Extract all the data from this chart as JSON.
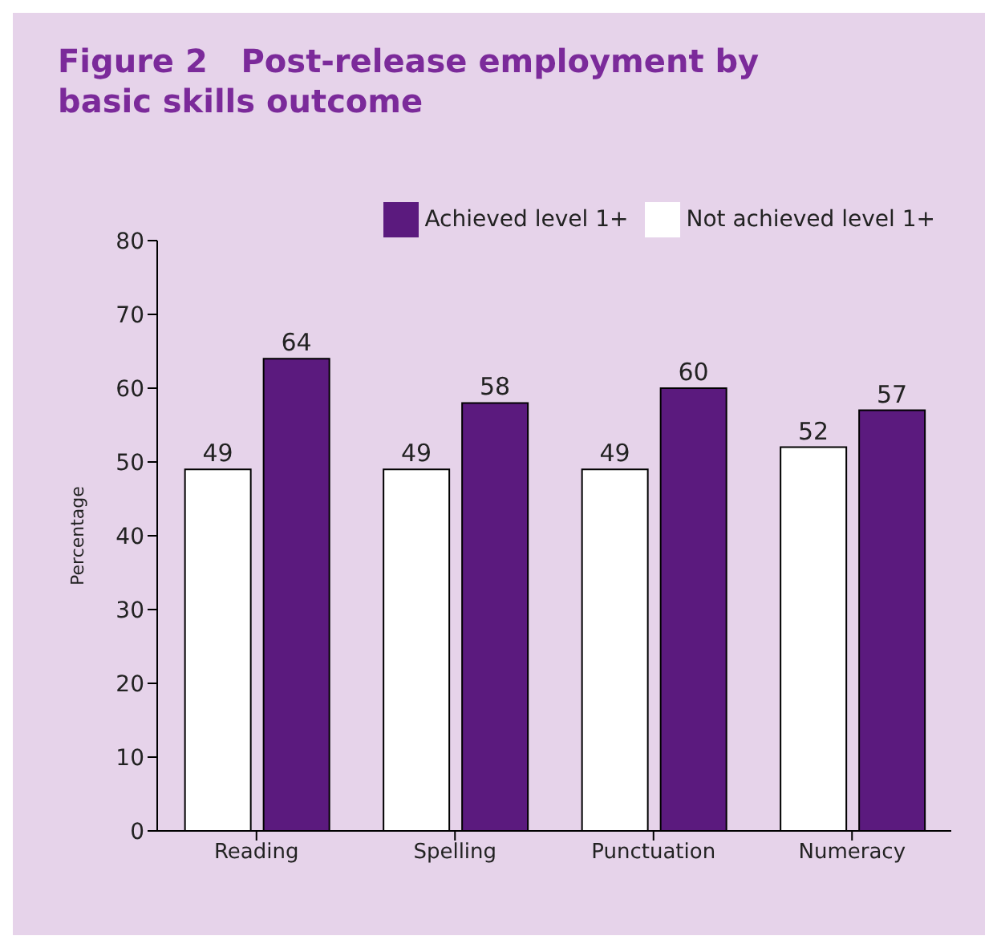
{
  "chart_data": {
    "type": "bar",
    "title": "Figure 2   Post-release employment by basic skills outcome",
    "ylabel": "Percentage",
    "categories": [
      "Reading",
      "Spelling",
      "Punctuation",
      "Numeracy"
    ],
    "series": [
      {
        "name": "Not achieved level 1+",
        "color": "#ffffff",
        "values": [
          49,
          49,
          49,
          52
        ]
      },
      {
        "name": "Achieved level 1+",
        "color": "#5b1a7e",
        "values": [
          64,
          58,
          60,
          57
        ]
      }
    ],
    "ylim": [
      0,
      80
    ],
    "yticks": [
      0,
      10,
      20,
      30,
      40,
      50,
      60,
      70,
      80
    ],
    "grid": false,
    "legend": "top right",
    "data_labels": true
  }
}
